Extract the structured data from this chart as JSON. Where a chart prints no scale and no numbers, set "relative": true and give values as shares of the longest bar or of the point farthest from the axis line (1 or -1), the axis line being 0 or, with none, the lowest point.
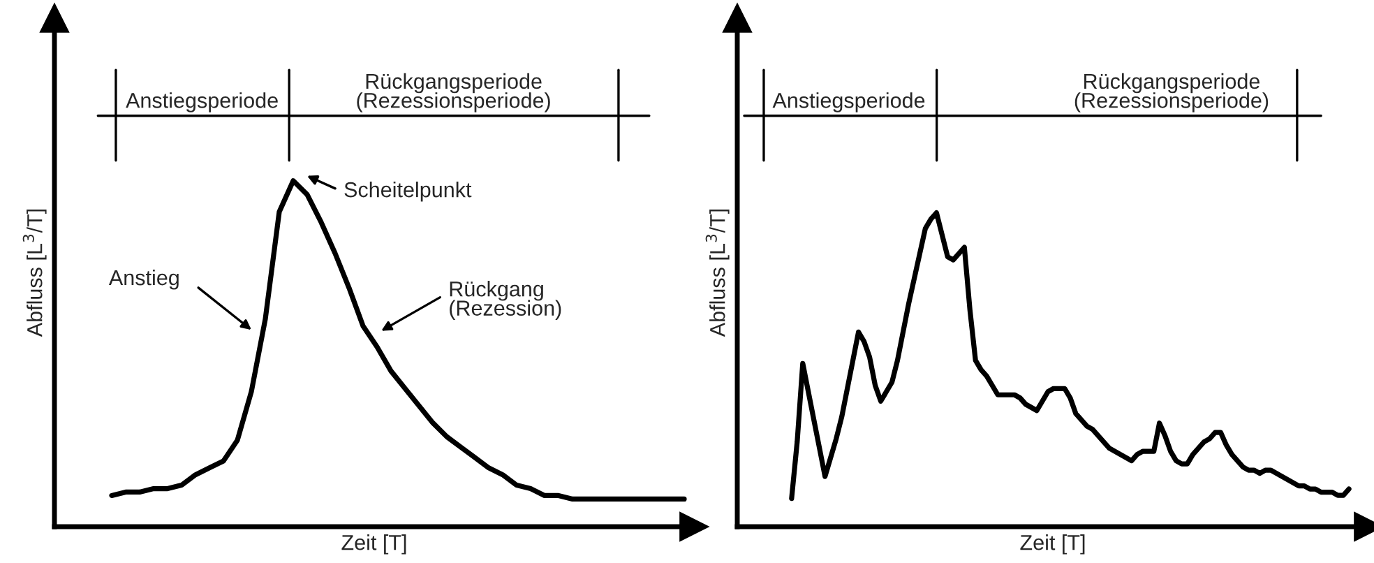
{
  "chart_data": [
    {
      "type": "line",
      "xlabel": "Zeit [T]",
      "ylabel": "Abfluss [L$^{3}$/T]",
      "relative": true,
      "tick_labels": false,
      "categories": [
        null,
        null,
        null,
        null,
        null,
        null,
        null,
        null,
        null,
        null,
        null,
        null,
        null,
        null,
        null,
        null,
        null,
        null,
        null,
        null,
        null,
        null,
        null,
        null,
        null,
        null,
        null,
        null,
        null,
        null,
        null,
        null,
        null,
        null,
        null,
        null,
        null,
        null,
        null,
        null,
        null,
        null
      ],
      "series": [
        {
          "color": "#000000",
          "values": [
            0.09,
            0.1,
            0.1,
            0.11,
            0.11,
            0.12,
            0.15,
            0.17,
            0.19,
            0.25,
            0.39,
            0.6,
            0.91,
            1.0,
            0.96,
            0.88,
            0.79,
            0.69,
            0.58,
            0.52,
            0.45,
            0.4,
            0.35,
            0.3,
            0.26,
            0.23,
            0.2,
            0.17,
            0.15,
            0.12,
            0.11,
            0.09,
            0.09,
            0.08,
            0.08,
            0.08,
            0.08,
            0.08,
            0.08,
            0.08,
            0.08,
            0.08
          ]
        }
      ],
      "annotations": [
        "Anstiegsperiode",
        "Rückgangsperiode\n(Rezessionsperiode)",
        "Scheitelpunkt",
        "Anstieg",
        "Rückgang\n(Rezession)"
      ]
    },
    {
      "type": "line",
      "xlabel": "Zeit [T]",
      "ylabel": "Abfluss [L$^{3}$/T]",
      "relative": true,
      "tick_labels": false,
      "categories": [
        null,
        null,
        null,
        null,
        null,
        null,
        null,
        null,
        null,
        null,
        null,
        null,
        null,
        null,
        null,
        null,
        null,
        null,
        null,
        null,
        null,
        null,
        null,
        null,
        null,
        null,
        null,
        null,
        null,
        null,
        null,
        null,
        null,
        null,
        null,
        null,
        null,
        null,
        null,
        null,
        null,
        null,
        null,
        null,
        null,
        null,
        null,
        null,
        null,
        null,
        null,
        null,
        null,
        null,
        null,
        null,
        null,
        null,
        null,
        null,
        null,
        null,
        null,
        null,
        null,
        null,
        null,
        null,
        null,
        null,
        null,
        null,
        null,
        null,
        null,
        null,
        null,
        null,
        null,
        null,
        null,
        null,
        null,
        null,
        null,
        null,
        null,
        null,
        null,
        null,
        null,
        null,
        null,
        null,
        null,
        null,
        null,
        null,
        null,
        null,
        null
      ],
      "series": [
        {
          "color": "#000000",
          "values": [
            0.09,
            0.27,
            0.52,
            0.43,
            0.34,
            0.25,
            0.16,
            0.22,
            0.28,
            0.35,
            0.44,
            0.53,
            0.62,
            0.59,
            0.54,
            0.45,
            0.4,
            0.43,
            0.46,
            0.53,
            0.62,
            0.71,
            0.79,
            0.87,
            0.95,
            0.98,
            1.0,
            0.93,
            0.86,
            0.85,
            0.87,
            0.89,
            0.69,
            0.53,
            0.5,
            0.48,
            0.45,
            0.42,
            0.42,
            0.42,
            0.42,
            0.41,
            0.39,
            0.38,
            0.37,
            0.4,
            0.43,
            0.44,
            0.44,
            0.44,
            0.41,
            0.36,
            0.34,
            0.32,
            0.31,
            0.29,
            0.27,
            0.25,
            0.24,
            0.23,
            0.22,
            0.21,
            0.23,
            0.24,
            0.24,
            0.24,
            0.33,
            0.29,
            0.24,
            0.21,
            0.2,
            0.2,
            0.23,
            0.25,
            0.27,
            0.28,
            0.3,
            0.3,
            0.26,
            0.23,
            0.21,
            0.19,
            0.18,
            0.18,
            0.17,
            0.18,
            0.18,
            0.17,
            0.16,
            0.15,
            0.14,
            0.13,
            0.13,
            0.12,
            0.12,
            0.11,
            0.11,
            0.11,
            0.1,
            0.1,
            0.12
          ]
        }
      ],
      "annotations": [
        "Anstiegsperiode",
        "Rückgangsperiode\n(Rezessionsperiode)"
      ]
    }
  ]
}
